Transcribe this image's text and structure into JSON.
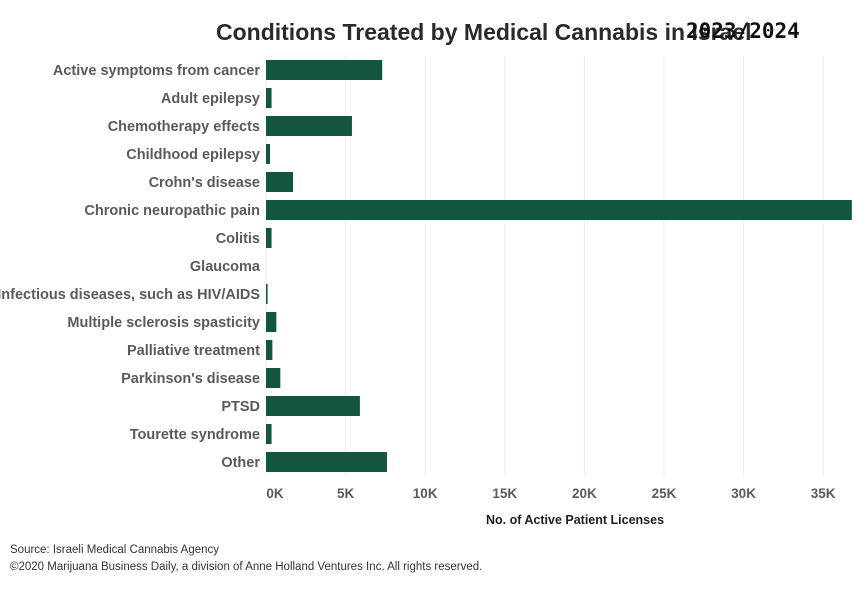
{
  "chart_data": {
    "type": "bar",
    "orientation": "horizontal",
    "title": "Conditions Treated by Medical Cannabis in Israel",
    "title_suffix": "2023/2024",
    "xlabel": "No. of Active Patient Licenses",
    "ylabel": "",
    "xlim": [
      0,
      37000
    ],
    "xticks": [
      0,
      5000,
      10000,
      15000,
      20000,
      25000,
      30000,
      35000
    ],
    "xtick_labels": [
      "0K",
      "5K",
      "10K",
      "15K",
      "20K",
      "25K",
      "30K",
      "35K"
    ],
    "grid": true,
    "categories": [
      "Active symptoms from cancer",
      "Adult epilepsy",
      "Chemotherapy effects",
      "Childhood epilepsy",
      "Crohn's disease",
      "Chronic neuropathic pain",
      "Colitis",
      "Glaucoma",
      "Infectious diseases, such as HIV/AIDS",
      "Multiple sclerosis spasticity",
      "Palliative treatment",
      "Parkinson's disease",
      "PTSD",
      "Tourette syndrome",
      "Other"
    ],
    "values": [
      7300,
      350,
      5400,
      250,
      1700,
      36800,
      350,
      0,
      100,
      650,
      400,
      900,
      5900,
      350,
      7600
    ],
    "bar_color": "#125640"
  },
  "footer": {
    "source": "Source: Israeli Medical Cannabis Agency",
    "copyright": "©2020 Marijuana Business Daily, a division of Anne Holland Ventures Inc. All rights reserved."
  }
}
